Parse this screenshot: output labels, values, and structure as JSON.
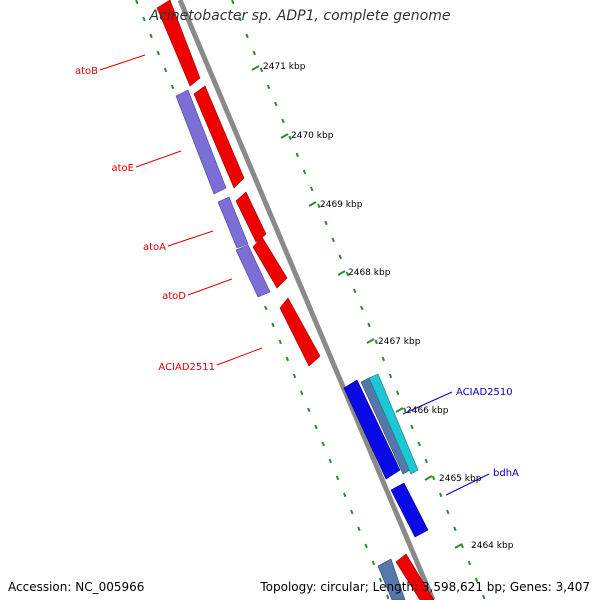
{
  "title": "Acinetobacter sp. ADP1, complete genome",
  "footer": {
    "accession": "Accession: NC_005966",
    "topology": "Topology: circular; Length: 3,598,621 bp; Genes: 3,407"
  },
  "ticks": [
    "2471 kbp",
    "2470 kbp",
    "2469 kbp",
    "2468 kbp",
    "2467 kbp",
    "2466 kbp",
    "2465 kbp",
    "2464 kbp"
  ],
  "gene_labels": [
    {
      "text": "atoB",
      "color": "#e00000"
    },
    {
      "text": "atoE",
      "color": "#e00000"
    },
    {
      "text": "atoA",
      "color": "#e00000"
    },
    {
      "text": "atoD",
      "color": "#e00000"
    },
    {
      "text": "ACIAD2511",
      "color": "#e00000"
    },
    {
      "text": "ACIAD2510",
      "color": "#0000cc"
    },
    {
      "text": "bdhA",
      "color": "#0000cc"
    }
  ],
  "colors": {
    "red_gene": "#ee0000",
    "purple_gene": "#7b6fd6",
    "blue_gene": "#0a0ae6",
    "cyan_gene": "#1ec8d2",
    "steel_gene": "#5577aa",
    "backbone": "#8a8a8a",
    "tick_green": "#2e8b2e"
  }
}
